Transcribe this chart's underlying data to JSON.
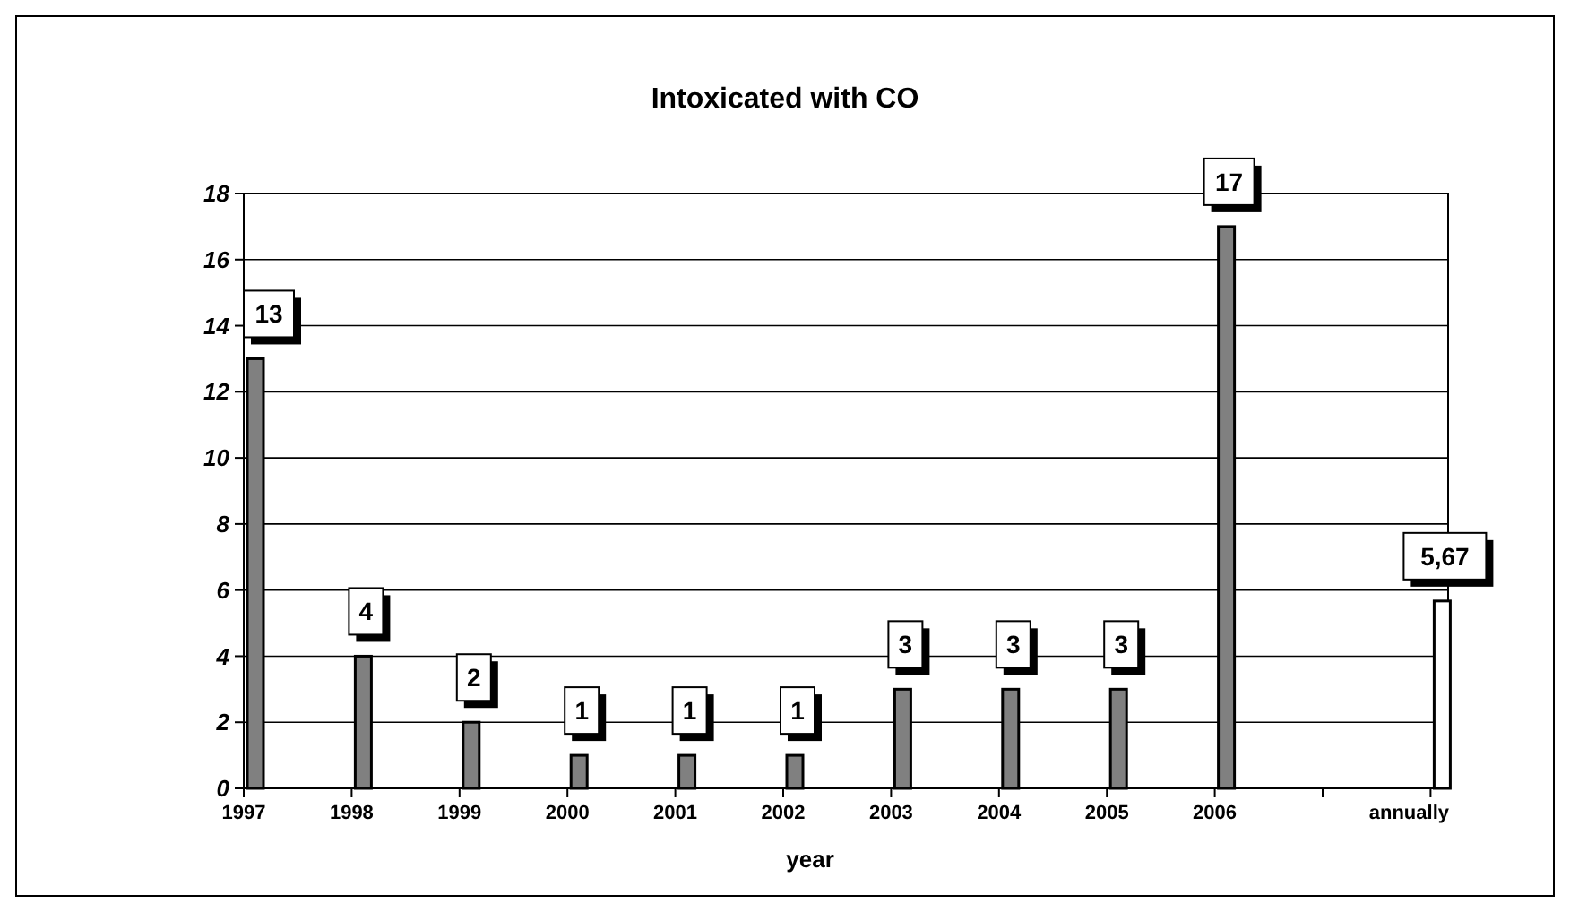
{
  "chart_data": {
    "type": "bar",
    "title": "Intoxicated with CO",
    "xlabel": "year",
    "categories": [
      "1997",
      "1998",
      "1999",
      "2000",
      "2001",
      "2002",
      "2003",
      "2004",
      "2005",
      "2006",
      null,
      "annually"
    ],
    "values": [
      13,
      4,
      2,
      1,
      1,
      1,
      3,
      3,
      3,
      17,
      null,
      5.67
    ],
    "value_labels": [
      "13",
      "4",
      "2",
      "1",
      "1",
      "1",
      "3",
      "3",
      "3",
      "17",
      null,
      "5,67"
    ],
    "colors": [
      "#808080",
      "#808080",
      "#808080",
      "#808080",
      "#808080",
      "#808080",
      "#808080",
      "#808080",
      "#808080",
      "#808080",
      null,
      "#ffffff"
    ],
    "ylim": [
      0,
      18
    ],
    "yticks": [
      0,
      2,
      4,
      6,
      8,
      10,
      12,
      14,
      16,
      18
    ],
    "grid": "y"
  }
}
